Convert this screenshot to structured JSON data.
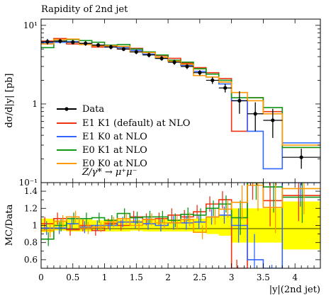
{
  "chart_data": [
    {
      "type": "line",
      "title": "Rapidity of 2nd jet",
      "ylabel": "dσ/d|y| [pb]",
      "yscale": "log",
      "ylim": [
        0.1,
        12
      ],
      "y_ticks_major": [
        {
          "value": 0.1,
          "label": "10⁻¹"
        },
        {
          "value": 1,
          "label": "1"
        },
        {
          "value": 10,
          "label": "10¹"
        }
      ],
      "xlim": [
        0,
        4.4
      ],
      "x_edges": [
        0,
        0.2,
        0.4,
        0.6,
        0.8,
        1.0,
        1.2,
        1.4,
        1.6,
        1.8,
        2.0,
        2.2,
        2.4,
        2.6,
        2.8,
        3.0,
        3.25,
        3.5,
        3.8,
        4.4
      ],
      "legend_position": "bottom-left",
      "annotation": "Z/γ* → μ⁺μ⁻",
      "data_points": {
        "name": "Data",
        "color": "#000000",
        "x": [
          0.1,
          0.3,
          0.5,
          0.7,
          0.9,
          1.1,
          1.3,
          1.5,
          1.7,
          1.9,
          2.1,
          2.3,
          2.5,
          2.7,
          2.9,
          3.125,
          3.375,
          3.65,
          4.1
        ],
        "y": [
          6.2,
          6.3,
          6.1,
          5.9,
          5.6,
          5.3,
          5.0,
          4.6,
          4.2,
          3.8,
          3.4,
          3.0,
          2.5,
          2.0,
          1.6,
          1.1,
          0.75,
          0.62,
          0.21
        ],
        "err": [
          0.5,
          0.4,
          0.4,
          0.4,
          0.35,
          0.35,
          0.3,
          0.3,
          0.28,
          0.25,
          0.25,
          0.22,
          0.2,
          0.2,
          0.2,
          0.35,
          0.3,
          0.25,
          0.06
        ]
      },
      "series": [
        {
          "name": "E1 K1 (default) at NLO",
          "color": "#ee3311",
          "values": [
            6.3,
            6.8,
            5.8,
            5.9,
            5.3,
            5.4,
            5.0,
            5.1,
            4.5,
            4.1,
            3.8,
            3.3,
            2.9,
            2.5,
            2.1,
            0.45,
            1.2,
            0.8,
            0.28
          ]
        },
        {
          "name": "E1 K0 at NLO",
          "color": "#3366ff",
          "values": [
            6.0,
            6.1,
            6.2,
            5.8,
            5.6,
            5.3,
            5.2,
            4.8,
            4.3,
            3.8,
            3.5,
            3.1,
            2.6,
            2.2,
            1.8,
            1.1,
            0.45,
            0.15,
            0.32
          ]
        },
        {
          "name": "E0 K1 at NLO",
          "color": "#109618",
          "values": [
            5.2,
            6.3,
            6.6,
            6.4,
            6.1,
            5.6,
            5.7,
            5.0,
            4.6,
            4.2,
            3.6,
            3.4,
            2.8,
            2.4,
            2.0,
            1.2,
            1.2,
            0.9,
            0.28
          ]
        },
        {
          "name": "E0 K0 at NLO",
          "color": "#ff9900",
          "values": [
            5.8,
            6.6,
            6.7,
            5.7,
            5.5,
            5.5,
            5.4,
            4.6,
            4.5,
            3.9,
            3.5,
            3.2,
            2.3,
            2.2,
            1.9,
            1.4,
            1.1,
            0.75,
            0.3
          ]
        }
      ]
    },
    {
      "type": "line",
      "ylabel": "MC/Data",
      "xlabel": "|y|(2nd jet)",
      "ylim": [
        0.5,
        1.5
      ],
      "y_ticks": [
        0.6,
        0.8,
        1,
        1.2,
        1.4
      ],
      "xlim": [
        0,
        4.4
      ],
      "x_ticks": [
        0,
        0.5,
        1,
        1.5,
        2,
        2.5,
        3,
        3.5,
        4
      ],
      "band": {
        "color": "#ffff00",
        "lo": [
          0.92,
          0.94,
          0.93,
          0.93,
          0.94,
          0.93,
          0.93,
          0.94,
          0.93,
          0.93,
          0.93,
          0.93,
          0.92,
          0.9,
          0.88,
          0.8,
          0.8,
          0.8,
          0.72
        ],
        "hi": [
          1.08,
          1.06,
          1.07,
          1.07,
          1.06,
          1.07,
          1.07,
          1.06,
          1.07,
          1.07,
          1.07,
          1.07,
          1.08,
          1.1,
          1.12,
          1.2,
          1.2,
          1.2,
          1.28
        ]
      },
      "series": [
        {
          "name": "E1 K1 (default) at NLO",
          "color": "#ee3311",
          "values": [
            1.02,
            1.08,
            0.95,
            1.0,
            0.94,
            1.02,
            1.0,
            1.1,
            1.07,
            1.08,
            1.12,
            1.1,
            1.16,
            1.25,
            1.3,
            0.4,
            1.6,
            1.29,
            1.35
          ],
          "err": [
            0.08,
            0.07,
            0.07,
            0.07,
            0.06,
            0.06,
            0.06,
            0.07,
            0.07,
            0.07,
            0.08,
            0.08,
            0.08,
            0.09,
            0.1,
            0.2,
            0.3,
            0.3,
            0.3
          ]
        },
        {
          "name": "E1 K0 at NLO",
          "color": "#3366ff",
          "values": [
            0.97,
            0.97,
            1.02,
            0.98,
            1.0,
            1.0,
            1.04,
            1.04,
            1.02,
            1.0,
            1.03,
            1.03,
            1.04,
            1.1,
            1.12,
            1.0,
            0.6,
            0.24,
            1.52
          ],
          "err": [
            0.08,
            0.07,
            0.07,
            0.07,
            0.06,
            0.06,
            0.06,
            0.07,
            0.07,
            0.07,
            0.08,
            0.08,
            0.08,
            0.09,
            0.1,
            0.2,
            0.3,
            0.3,
            0.3
          ]
        },
        {
          "name": "E0 K1 at NLO",
          "color": "#109618",
          "values": [
            0.84,
            1.0,
            1.08,
            1.08,
            1.09,
            1.06,
            1.14,
            1.09,
            1.1,
            1.1,
            1.06,
            1.13,
            1.12,
            1.2,
            1.25,
            1.09,
            1.6,
            1.45,
            1.33
          ],
          "err": [
            0.08,
            0.07,
            0.07,
            0.07,
            0.06,
            0.06,
            0.06,
            0.07,
            0.07,
            0.07,
            0.08,
            0.08,
            0.08,
            0.09,
            0.1,
            0.2,
            0.3,
            0.3,
            0.3
          ]
        },
        {
          "name": "E0 K0 at NLO",
          "color": "#ff9900",
          "values": [
            0.94,
            1.05,
            1.1,
            0.97,
            0.98,
            1.04,
            1.08,
            1.0,
            1.07,
            1.03,
            1.03,
            1.07,
            0.92,
            1.1,
            1.19,
            1.27,
            1.47,
            1.21,
            1.43
          ],
          "err": [
            0.08,
            0.07,
            0.07,
            0.07,
            0.06,
            0.06,
            0.06,
            0.07,
            0.07,
            0.07,
            0.08,
            0.08,
            0.08,
            0.09,
            0.1,
            0.2,
            0.3,
            0.3,
            0.3
          ]
        }
      ]
    }
  ]
}
